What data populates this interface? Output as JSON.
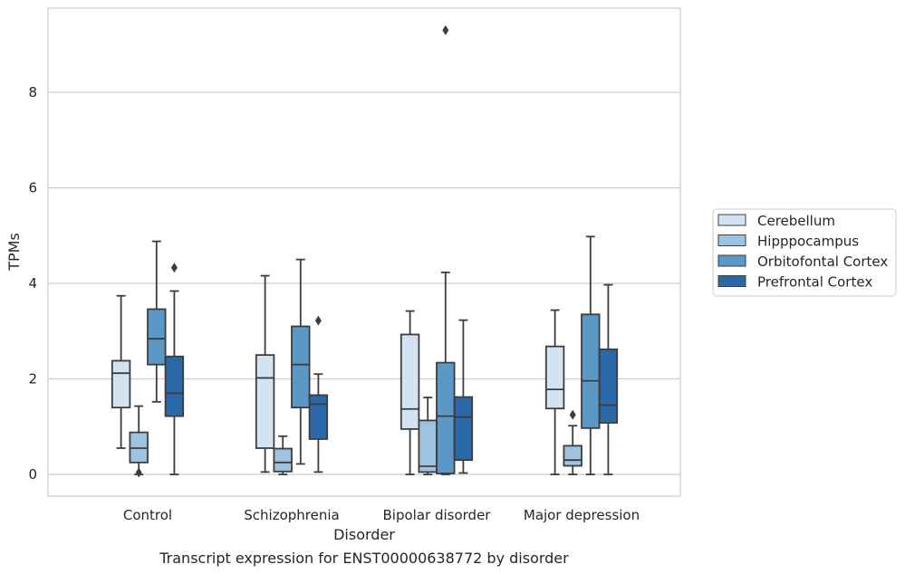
{
  "chart_data": {
    "type": "box",
    "title": "",
    "caption": "Transcript expression for ENST00000638772 by disorder",
    "xlabel": "Disorder",
    "ylabel": "TPMs",
    "ylim": [
      -0.45,
      9.8
    ],
    "yticks": [
      0,
      2,
      4,
      6,
      8
    ],
    "grid": "horizontal",
    "legend_position": "right",
    "categories": [
      "Control",
      "Schizophrenia",
      "Bipolar disorder",
      "Major depression"
    ],
    "series": [
      {
        "name": "Cerebellum",
        "color": "#d4e3f2",
        "boxes": [
          {
            "min": 0.55,
            "q1": 1.4,
            "median": 2.12,
            "q3": 2.38,
            "max": 3.74,
            "outliers": []
          },
          {
            "min": 0.05,
            "q1": 0.55,
            "median": 2.02,
            "q3": 2.5,
            "max": 4.16,
            "outliers": []
          },
          {
            "min": 0.0,
            "q1": 0.95,
            "median": 1.37,
            "q3": 2.93,
            "max": 3.42,
            "outliers": []
          },
          {
            "min": 0.0,
            "q1": 1.38,
            "median": 1.78,
            "q3": 2.68,
            "max": 3.44,
            "outliers": []
          }
        ]
      },
      {
        "name": "Hipppocampus",
        "color": "#9dc3e0",
        "boxes": [
          {
            "min": 0.0,
            "q1": 0.25,
            "median": 0.55,
            "q3": 0.88,
            "max": 1.43,
            "outliers": [
              0.04
            ]
          },
          {
            "min": 0.0,
            "q1": 0.06,
            "median": 0.25,
            "q3": 0.54,
            "max": 0.8,
            "outliers": []
          },
          {
            "min": 0.0,
            "q1": 0.05,
            "median": 0.17,
            "q3": 1.13,
            "max": 1.61,
            "outliers": []
          },
          {
            "min": 0.0,
            "q1": 0.18,
            "median": 0.3,
            "q3": 0.6,
            "max": 1.02,
            "outliers": [
              1.25
            ]
          }
        ]
      },
      {
        "name": "Orbitofontal Cortex",
        "color": "#5b98c6",
        "boxes": [
          {
            "min": 1.52,
            "q1": 2.3,
            "median": 2.84,
            "q3": 3.46,
            "max": 4.88,
            "outliers": []
          },
          {
            "min": 0.22,
            "q1": 1.4,
            "median": 2.3,
            "q3": 3.1,
            "max": 4.5,
            "outliers": []
          },
          {
            "min": 0.0,
            "q1": 0.02,
            "median": 1.22,
            "q3": 2.34,
            "max": 4.23,
            "outliers": [
              9.3
            ]
          },
          {
            "min": 0.0,
            "q1": 0.97,
            "median": 1.96,
            "q3": 3.35,
            "max": 4.98,
            "outliers": []
          }
        ]
      },
      {
        "name": "Prefrontal Cortex",
        "color": "#2a68a8",
        "boxes": [
          {
            "min": 0.0,
            "q1": 1.22,
            "median": 1.7,
            "q3": 2.47,
            "max": 3.84,
            "outliers": [
              4.33
            ]
          },
          {
            "min": 0.05,
            "q1": 0.74,
            "median": 1.47,
            "q3": 1.66,
            "max": 2.1,
            "outliers": [
              3.22
            ]
          },
          {
            "min": 0.03,
            "q1": 0.3,
            "median": 1.2,
            "q3": 1.62,
            "max": 3.23,
            "outliers": []
          },
          {
            "min": 0.0,
            "q1": 1.08,
            "median": 1.45,
            "q3": 2.62,
            "max": 3.97,
            "outliers": []
          }
        ]
      }
    ]
  }
}
